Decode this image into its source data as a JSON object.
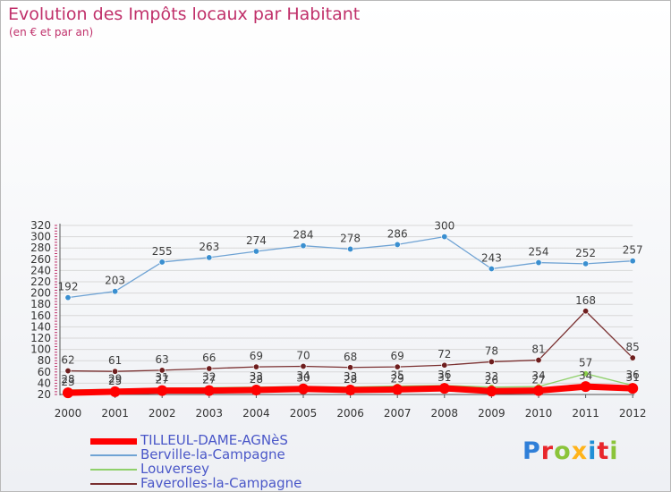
{
  "title": "Evolution des Impôts locaux par Habitant",
  "subtitle": "(en € et par an)",
  "logo": {
    "text": "Proxiti",
    "colors": [
      "#2f7fd8",
      "#e8262b",
      "#8bc43a",
      "#ffb31a",
      "#1f8fd6",
      "#e8262b",
      "#8bc43a"
    ]
  },
  "chart_data": {
    "type": "line",
    "title": "Evolution des Impôts locaux par Habitant",
    "subtitle": "(en € et par an)",
    "xlabel": "",
    "ylabel": "",
    "ylim": [
      20,
      320
    ],
    "y_ticks": [
      20,
      40,
      60,
      80,
      100,
      120,
      140,
      160,
      180,
      200,
      220,
      240,
      260,
      280,
      300,
      320
    ],
    "x": [
      "2000",
      "2001",
      "2002",
      "2003",
      "2004",
      "2005",
      "2006",
      "2007",
      "2008",
      "2009",
      "2010",
      "2011",
      "2012"
    ],
    "grid": true,
    "legend_position": "bottom-left",
    "series": [
      {
        "name": "Berville-la-Campagne",
        "color": "#6fa3d4",
        "marker": "#3a8fd0",
        "label_color": "#3d3d3d",
        "values": [
          192,
          203,
          255,
          263,
          274,
          284,
          278,
          286,
          300,
          243,
          254,
          252,
          257
        ]
      },
      {
        "name": "Faverolles-la-Campagne",
        "color": "#7a3030",
        "marker": "#6e1e1e",
        "label_color": "#3d3d3d",
        "values": [
          62,
          61,
          63,
          66,
          69,
          70,
          68,
          69,
          72,
          78,
          81,
          168,
          85
        ]
      },
      {
        "name": "Louversey",
        "color": "#8fd06a",
        "marker": "#8bd14a",
        "label_color": "#3d3d3d",
        "values": [
          28,
          29,
          31,
          32,
          33,
          34,
          33,
          35,
          36,
          33,
          34,
          57,
          36
        ]
      },
      {
        "name": "TILLEUL-DAME-AGNèS",
        "color": "#ff0000",
        "marker": "#ff0000",
        "label_color": "#3d3d3d",
        "values": [
          23,
          25,
          27,
          27,
          28,
          30,
          28,
          29,
          31,
          26,
          27,
          34,
          31
        ]
      }
    ],
    "legend": [
      {
        "name": "TILLEUL-DAME-AGNèS",
        "color": "#ff0000",
        "text_color": "#4a57c8"
      },
      {
        "name": "Berville-la-Campagne",
        "color": "#6fa3d4",
        "text_color": "#4a57c8"
      },
      {
        "name": "Louversey",
        "color": "#8fd06a",
        "text_color": "#4a57c8"
      },
      {
        "name": "Faverolles-la-Campagne",
        "color": "#7a3030",
        "text_color": "#4a57c8"
      }
    ]
  }
}
